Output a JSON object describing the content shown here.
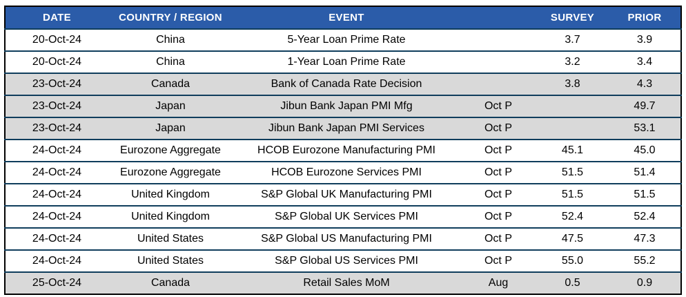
{
  "table": {
    "title": "economic-calendar",
    "columns": [
      {
        "key": "date",
        "label": "DATE"
      },
      {
        "key": "country",
        "label": "COUNTRY / REGION"
      },
      {
        "key": "event",
        "label": "EVENT"
      },
      {
        "key": "period",
        "label": ""
      },
      {
        "key": "survey",
        "label": "SURVEY"
      },
      {
        "key": "prior",
        "label": "PRIOR"
      }
    ],
    "rows": [
      {
        "date": "20-Oct-24",
        "country": "China",
        "event": "5-Year Loan Prime Rate",
        "period": "",
        "survey": "3.7",
        "prior": "3.9",
        "shaded": false
      },
      {
        "date": "20-Oct-24",
        "country": "China",
        "event": "1-Year Loan Prime Rate",
        "period": "",
        "survey": "3.2",
        "prior": "3.4",
        "shaded": false
      },
      {
        "date": "23-Oct-24",
        "country": "Canada",
        "event": "Bank of Canada Rate Decision",
        "period": "",
        "survey": "3.8",
        "prior": "4.3",
        "shaded": true
      },
      {
        "date": "23-Oct-24",
        "country": "Japan",
        "event": "Jibun Bank Japan PMI Mfg",
        "period": "Oct P",
        "survey": "",
        "prior": "49.7",
        "shaded": true
      },
      {
        "date": "23-Oct-24",
        "country": "Japan",
        "event": "Jibun Bank Japan PMI Services",
        "period": "Oct P",
        "survey": "",
        "prior": "53.1",
        "shaded": true
      },
      {
        "date": "24-Oct-24",
        "country": "Eurozone Aggregate",
        "event": "HCOB Eurozone Manufacturing PMI",
        "period": "Oct P",
        "survey": "45.1",
        "prior": "45.0",
        "shaded": false
      },
      {
        "date": "24-Oct-24",
        "country": "Eurozone Aggregate",
        "event": "HCOB Eurozone Services PMI",
        "period": "Oct P",
        "survey": "51.5",
        "prior": "51.4",
        "shaded": false
      },
      {
        "date": "24-Oct-24",
        "country": "United Kingdom",
        "event": "S&P Global UK Manufacturing PMI",
        "period": "Oct P",
        "survey": "51.5",
        "prior": "51.5",
        "shaded": false
      },
      {
        "date": "24-Oct-24",
        "country": "United Kingdom",
        "event": "S&P Global UK Services PMI",
        "period": "Oct P",
        "survey": "52.4",
        "prior": "52.4",
        "shaded": false
      },
      {
        "date": "24-Oct-24",
        "country": "United States",
        "event": "S&P Global US Manufacturing PMI",
        "period": "Oct P",
        "survey": "47.5",
        "prior": "47.3",
        "shaded": false
      },
      {
        "date": "24-Oct-24",
        "country": "United States",
        "event": "S&P Global US Services PMI",
        "period": "Oct P",
        "survey": "55.0",
        "prior": "55.2",
        "shaded": false
      },
      {
        "date": "25-Oct-24",
        "country": "Canada",
        "event": "Retail Sales MoM",
        "period": "Aug",
        "survey": "0.5",
        "prior": "0.9",
        "shaded": true
      }
    ]
  },
  "colors": {
    "header_bg": "#2B5CA9",
    "header_text": "#FFFFFF",
    "row_shaded_bg": "#D9D9D9",
    "row_plain_bg": "#FFFFFF",
    "row_separator": "#0F3D5C",
    "outer_border": "#000000"
  }
}
